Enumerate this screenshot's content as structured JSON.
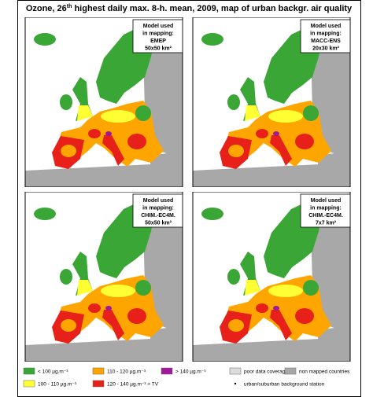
{
  "header": {
    "title_pre": "Ozone, 26",
    "title_sup": "th",
    "title_post": " highest daily max. 8-h. mean, 2009, map of urban backgr. air quality"
  },
  "panels": [
    {
      "line1": "Model used",
      "line2": "in mapping:",
      "model": "EMEP",
      "resolution": "50x50 km²"
    },
    {
      "line1": "Model used",
      "line2": "in mapping:",
      "model": "MACC-ENS",
      "resolution": "20x30 km²"
    },
    {
      "line1": "Model used",
      "line2": "in mapping:",
      "model": "CHIM.-EC4M.",
      "resolution": "50x50 km²"
    },
    {
      "line1": "Model used",
      "line2": "in mapping:",
      "model": "CHIM.-EC4M.",
      "resolution": "7x7 km²"
    }
  ],
  "legend": [
    {
      "label": "< 100  µg.m⁻³",
      "color": "#3aa635"
    },
    {
      "label": "110 - 120  µg.m⁻³",
      "color": "#ffa500"
    },
    {
      "label": "> 140  µg.m⁻³",
      "color": "#a0199a"
    },
    {
      "label": "poor data coverage",
      "color": "#dcdcdc"
    },
    {
      "label": "non mapped countries",
      "color": "#a8a8a8"
    },
    {
      "label": "100 - 110  µg.m⁻³",
      "color": "#ffff33"
    },
    {
      "label": "120 - 140  µg.m⁻³ > TV",
      "color": "#e8201a"
    },
    {
      "label": "urban/suburban background station",
      "color": "#ffffff"
    }
  ]
}
